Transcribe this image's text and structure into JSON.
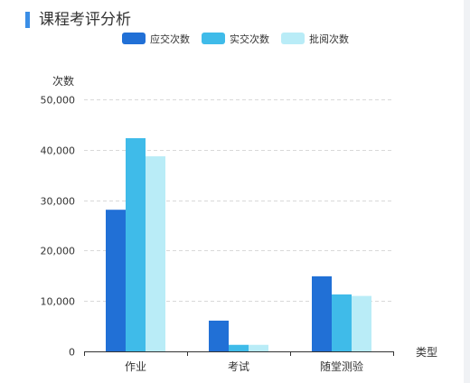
{
  "panel": {
    "title": "课程考评分析"
  },
  "colors": {
    "title_accent": "#3a8ee6",
    "axis": "#333333",
    "grid": "#d9d9d9"
  },
  "chart_data": {
    "type": "bar",
    "title": "",
    "xlabel": "类型",
    "ylabel": "次数",
    "categories": [
      "作业",
      "考试",
      "随堂测验"
    ],
    "ylim": [
      0,
      50000
    ],
    "y_ticks": [
      0,
      10000,
      20000,
      30000,
      40000,
      50000
    ],
    "y_tick_labels": [
      "0",
      "10,000",
      "20,000",
      "30,000",
      "40,000",
      "50,000"
    ],
    "grid": true,
    "grid_style": "dashed",
    "legend_position": "top-center",
    "series": [
      {
        "name": "应交次数",
        "color": "#2170d6",
        "values": [
          28100,
          6100,
          14900
        ]
      },
      {
        "name": "实交次数",
        "color": "#3fbbe9",
        "values": [
          42300,
          1300,
          11300
        ]
      },
      {
        "name": "批阅次数",
        "color": "#b9ecf7",
        "values": [
          38700,
          1300,
          11000
        ]
      }
    ]
  }
}
